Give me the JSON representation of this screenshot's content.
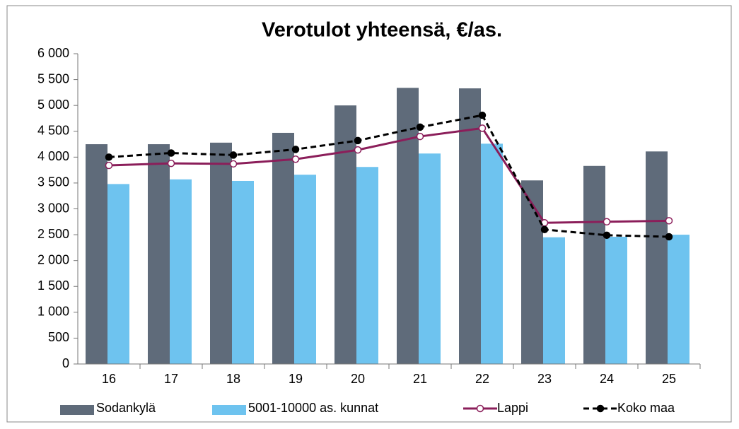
{
  "chart_data": {
    "type": "bar",
    "title": "Verotulot yhteensä, €/as.",
    "categories": [
      "16",
      "17",
      "18",
      "19",
      "20",
      "21",
      "22",
      "23",
      "24",
      "25"
    ],
    "series": [
      {
        "name": "Sodankylä",
        "type": "bar",
        "color": "#5f6b7a",
        "values": [
          4250,
          4250,
          4280,
          4470,
          5000,
          5340,
          5330,
          3550,
          3830,
          4110
        ]
      },
      {
        "name": "5001-10000 as. kunnat",
        "type": "bar",
        "color": "#6ec3ef",
        "values": [
          3480,
          3570,
          3540,
          3660,
          3810,
          4070,
          4260,
          2450,
          2460,
          2500
        ]
      },
      {
        "name": "Lappi",
        "type": "line",
        "color": "#8b1e5a",
        "marker": "open",
        "values": [
          3840,
          3880,
          3870,
          3960,
          4140,
          4400,
          4560,
          2730,
          2750,
          2770
        ]
      },
      {
        "name": "Koko maa",
        "type": "line",
        "color": "#000000",
        "marker": "filled",
        "dashed": true,
        "values": [
          4000,
          4080,
          4040,
          4150,
          4320,
          4580,
          4810,
          2600,
          2490,
          2460
        ]
      }
    ],
    "ylim": [
      0,
      6000
    ],
    "yticks": [
      0,
      500,
      {
        "value": 1000,
        "label": "1 000"
      },
      {
        "value": 1500,
        "label": "1 500"
      },
      {
        "value": 2000,
        "label": "2 000"
      },
      {
        "value": 2500,
        "label": "2 500"
      },
      {
        "value": 3000,
        "label": "3 000"
      },
      {
        "value": 3500,
        "label": "3 500"
      },
      {
        "value": 4000,
        "label": "4 000"
      },
      {
        "value": 4500,
        "label": "4 500"
      },
      {
        "value": 5000,
        "label": "5 000"
      },
      {
        "value": 5500,
        "label": "5 500"
      },
      {
        "value": 6000,
        "label": "6 000"
      }
    ],
    "grid": false,
    "legend": "bottom"
  }
}
